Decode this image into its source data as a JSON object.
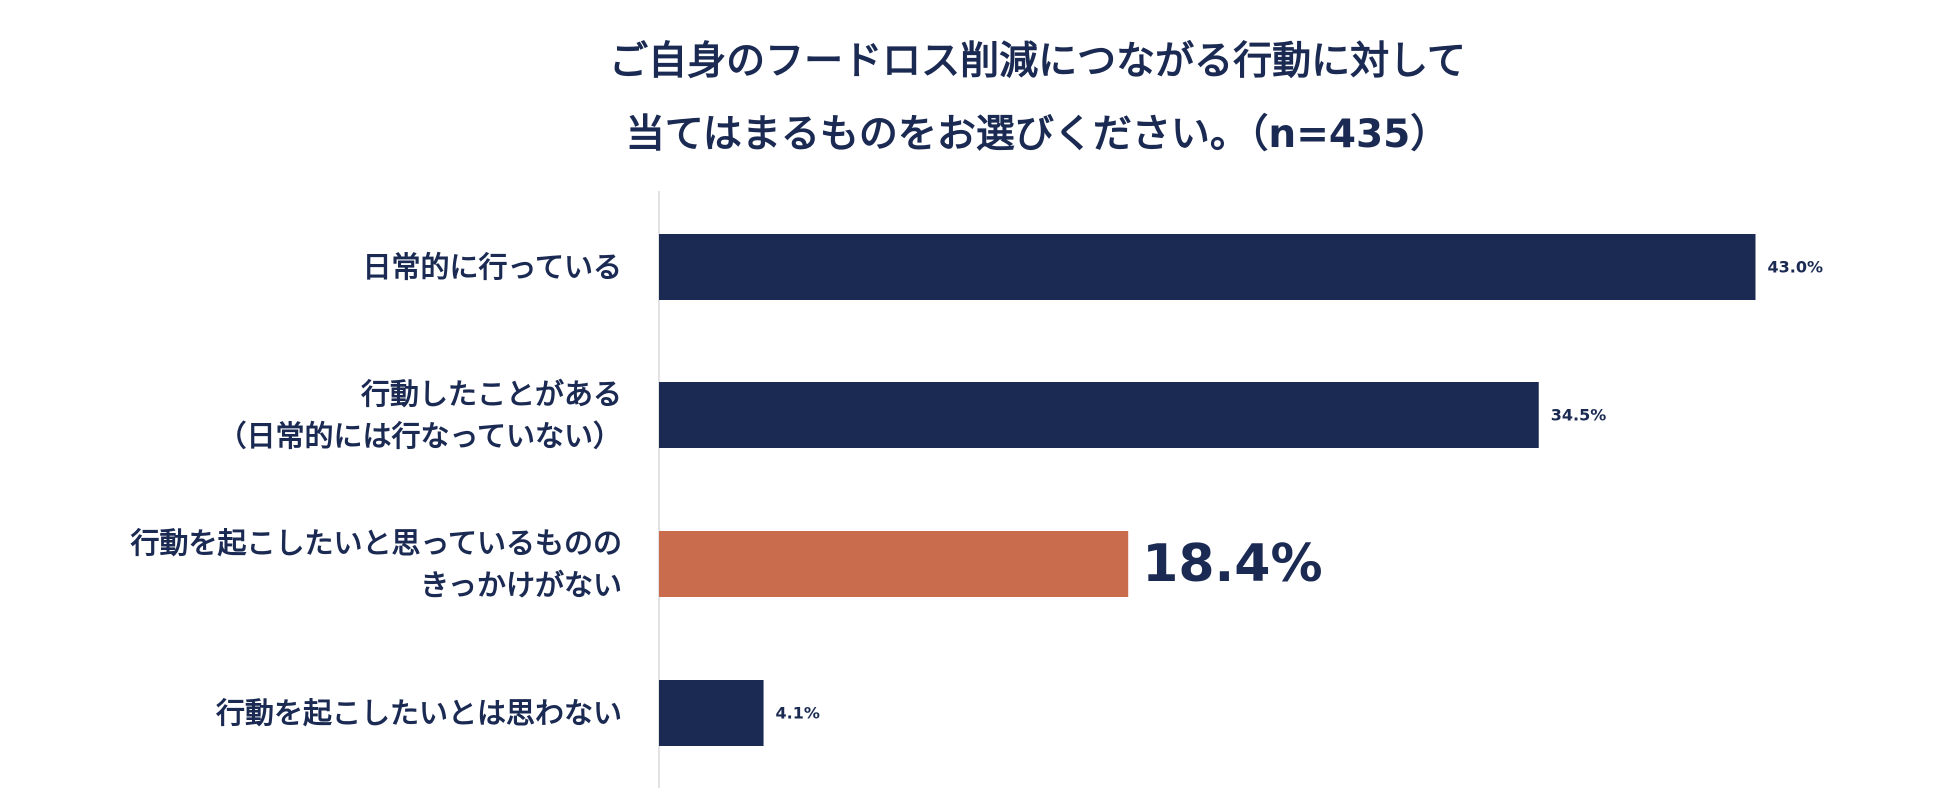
{
  "chart_data": {
    "type": "bar",
    "orientation": "horizontal",
    "title": [
      "ご自身のフードロス削減につながる行動に対して",
      "当てはまるものをお選びください。（n=435）"
    ],
    "categories": [
      [
        "日常的に行っている"
      ],
      [
        "行動したことがある",
        "（日常的には行なっていない）"
      ],
      [
        "行動を起こしたいと思っているものの",
        "きっかけがない"
      ],
      [
        "行動を起こしたいとは思わない"
      ]
    ],
    "values": [
      43.0,
      34.5,
      18.4,
      4.1
    ],
    "data_labels": [
      "43.0%",
      "34.5%",
      "18.4%",
      "4.1%"
    ],
    "unit": "%",
    "highlight_index": 2,
    "colors": {
      "bar": "#1b2a52",
      "highlight": "#c96c4e",
      "axis": "#d9d9d9",
      "text": "#1b2a52"
    },
    "xlim": [
      0,
      50
    ],
    "grid": false,
    "legend": "none"
  }
}
